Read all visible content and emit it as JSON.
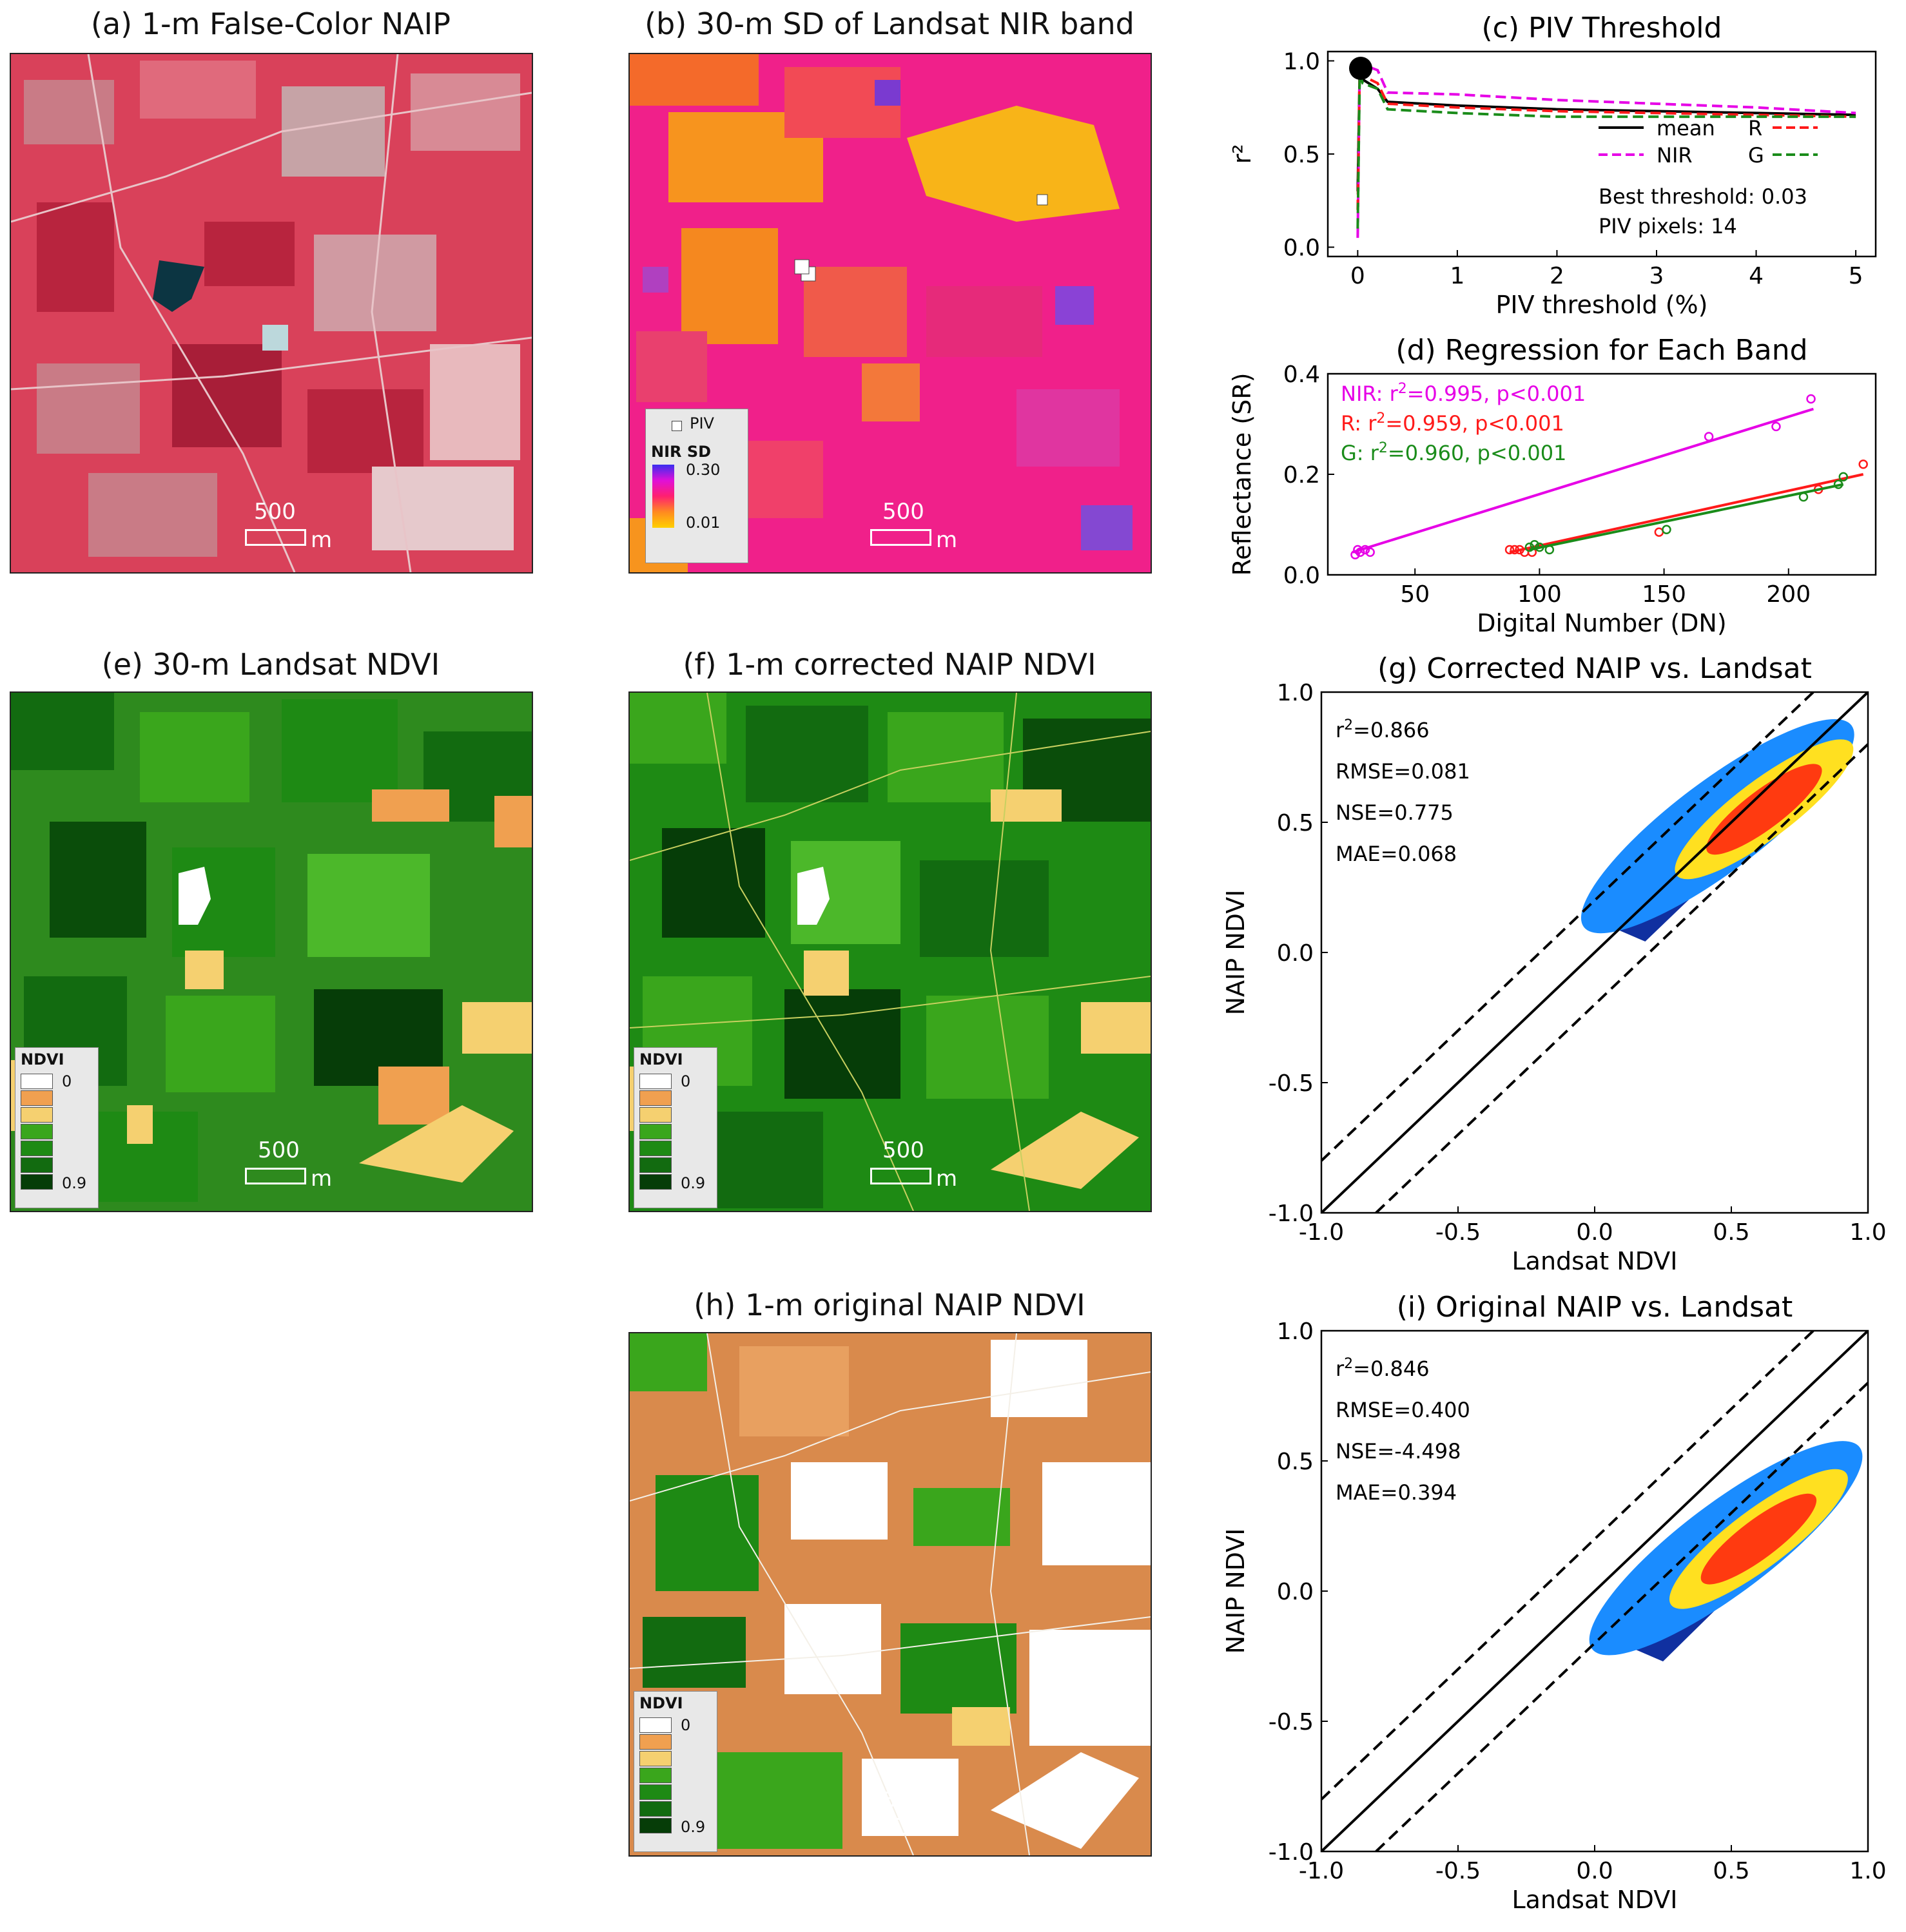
{
  "panels": {
    "a": {
      "title": "(a) 1-m False-Color NAIP",
      "scale_value": "500",
      "scale_unit": "m"
    },
    "b": {
      "title": "(b) 30-m SD of Landsat NIR band",
      "scale_value": "500",
      "scale_unit": "m",
      "legend": {
        "piv_label": "PIV",
        "title": "NIR SD",
        "max": "0.30",
        "min": "0.01"
      }
    },
    "e": {
      "title": "(e) 30-m Landsat NDVI",
      "scale_value": "500",
      "scale_unit": "m"
    },
    "f": {
      "title": "(f) 1-m corrected NAIP NDVI",
      "scale_value": "500",
      "scale_unit": "m"
    },
    "h": {
      "title": "(h) 1-m original NAIP NDVI",
      "scale_value": "500",
      "scale_unit": "m"
    }
  },
  "ndvi_legend": {
    "title": "NDVI",
    "min": "0",
    "max": "0.9",
    "colors": [
      "#ffffff",
      "#f0a050",
      "#f5d070",
      "#3aa61c",
      "#1e8a14",
      "#126b10",
      "#063d08"
    ]
  },
  "colors": {
    "naip_base": "#d9415a",
    "sd_base": "#f0208a",
    "ndvi_base": "#2e8a1e",
    "orig_base": "#d98a4c",
    "mean": "#000000",
    "nir": "#e600e6",
    "r": "#ff1a1a",
    "g": "#1a8c1a"
  },
  "chart_data": [
    {
      "id": "c",
      "type": "line",
      "title": "(c) PIV Threshold",
      "xlabel": "PIV threshold (%)",
      "ylabel": "r²",
      "xlim": [
        -0.3,
        5.2
      ],
      "ylim": [
        -0.05,
        1.05
      ],
      "xticks": [
        0,
        1,
        2,
        3,
        4,
        5
      ],
      "xtick_labels": [
        "0",
        "1",
        "2",
        "3",
        "4",
        "5"
      ],
      "yticks": [
        0,
        0.5,
        1
      ],
      "ytick_labels": [
        "0.0",
        "0.5",
        "1.0"
      ],
      "series": [
        {
          "name": "mean",
          "style": "solid",
          "x": [
            0,
            0.02,
            0.03,
            0.05,
            0.2,
            0.3,
            1,
            2,
            3,
            4,
            5
          ],
          "y": [
            0.3,
            0.95,
            0.96,
            0.9,
            0.85,
            0.78,
            0.76,
            0.74,
            0.73,
            0.72,
            0.71
          ]
        },
        {
          "name": "NIR",
          "style": "dashed",
          "x": [
            0,
            0.02,
            0.05,
            0.2,
            0.3,
            1,
            2,
            3,
            4,
            5
          ],
          "y": [
            0.05,
            0.98,
            0.98,
            0.95,
            0.83,
            0.82,
            0.79,
            0.77,
            0.75,
            0.72
          ]
        },
        {
          "name": "R",
          "style": "dashed",
          "x": [
            0,
            0.02,
            0.05,
            0.2,
            0.3,
            1,
            2,
            3,
            4,
            5
          ],
          "y": [
            0.2,
            0.95,
            0.92,
            0.88,
            0.77,
            0.75,
            0.73,
            0.72,
            0.71,
            0.7
          ]
        },
        {
          "name": "G",
          "style": "dashed",
          "x": [
            0,
            0.02,
            0.05,
            0.2,
            0.3,
            1,
            2,
            3,
            4,
            5
          ],
          "y": [
            0.1,
            0.93,
            0.88,
            0.85,
            0.74,
            0.72,
            0.7,
            0.7,
            0.7,
            0.7
          ]
        }
      ],
      "best_point": {
        "x": 0.03,
        "y": 0.96
      },
      "annotations": [
        "Best threshold: 0.03",
        "PIV pixels: 14"
      ],
      "legend": [
        "mean",
        "R",
        "NIR",
        "G"
      ]
    },
    {
      "id": "d",
      "type": "scatter",
      "title": "(d) Regression for Each Band",
      "xlabel": "Digital Number (DN)",
      "ylabel": "Reflectance (SR)",
      "xlim": [
        15,
        235
      ],
      "ylim": [
        0,
        0.4
      ],
      "xticks": [
        50,
        100,
        150,
        200
      ],
      "xtick_labels": [
        "50",
        "100",
        "150",
        "200"
      ],
      "yticks": [
        0,
        0.2,
        0.4
      ],
      "ytick_labels": [
        "0.0",
        "0.2",
        "0.4"
      ],
      "series": [
        {
          "name": "NIR",
          "points": [
            [
              26,
              0.04
            ],
            [
              27,
              0.05
            ],
            [
              28,
              0.045
            ],
            [
              30,
              0.05
            ],
            [
              32,
              0.045
            ],
            [
              168,
              0.275
            ],
            [
              195,
              0.295
            ],
            [
              209,
              0.35
            ]
          ],
          "fit": [
            [
              25,
              0.045
            ],
            [
              210,
              0.33
            ]
          ],
          "label_prefix": "NIR: r",
          "label_suffix": "=0.995, p<0.001"
        },
        {
          "name": "R",
          "points": [
            [
              88,
              0.05
            ],
            [
              90,
              0.05
            ],
            [
              92,
              0.05
            ],
            [
              94,
              0.045
            ],
            [
              97,
              0.045
            ],
            [
              148,
              0.085
            ],
            [
              212,
              0.17
            ],
            [
              230,
              0.22
            ]
          ],
          "fit": [
            [
              88,
              0.045
            ],
            [
              230,
              0.2
            ]
          ],
          "label_prefix": "R: r",
          "label_suffix": "=0.959, p<0.001"
        },
        {
          "name": "G",
          "points": [
            [
              96,
              0.055
            ],
            [
              98,
              0.06
            ],
            [
              100,
              0.055
            ],
            [
              104,
              0.05
            ],
            [
              151,
              0.09
            ],
            [
              206,
              0.155
            ],
            [
              220,
              0.18
            ],
            [
              222,
              0.195
            ]
          ],
          "fit": [
            [
              96,
              0.05
            ],
            [
              222,
              0.18
            ]
          ],
          "label_prefix": "G: r",
          "label_suffix": "=0.960, p<0.001"
        }
      ]
    },
    {
      "id": "g",
      "type": "scatter",
      "title": "(g) Corrected NAIP vs. Landsat",
      "xlabel": "Landsat NDVI",
      "ylabel": "NAIP NDVI",
      "xlim": [
        -1,
        1
      ],
      "ylim": [
        -1,
        1
      ],
      "xticks": [
        -1,
        -0.5,
        0,
        0.5,
        1
      ],
      "xtick_labels": [
        "-1.0",
        "-0.5",
        "0.0",
        "0.5",
        "1.0"
      ],
      "yticks": [
        -1,
        -0.5,
        0,
        0.5,
        1
      ],
      "ytick_labels": [
        "-1.0",
        "-0.5",
        "0.0",
        "0.5",
        "1.0"
      ],
      "stats": {
        "r2": "=0.866",
        "rmse": "RMSE=0.081",
        "nse": "NSE=0.775",
        "mae": "MAE=0.068"
      },
      "cloud": {
        "from": [
          0.05,
          0.15
        ],
        "to": [
          0.85,
          0.82
        ],
        "halfwidth": 0.09
      },
      "center": [
        0.62,
        0.55
      ],
      "offset": 0.2
    },
    {
      "id": "i",
      "type": "scatter",
      "title": "(i) Original NAIP vs. Landsat",
      "xlabel": "Landsat NDVI",
      "ylabel": "NAIP NDVI",
      "xlim": [
        -1,
        1
      ],
      "ylim": [
        -1,
        1
      ],
      "xticks": [
        -1,
        -0.5,
        0,
        0.5,
        1
      ],
      "xtick_labels": [
        "-1.0",
        "-0.5",
        "0.0",
        "0.5",
        "1.0"
      ],
      "yticks": [
        -1,
        -0.5,
        0,
        0.5,
        1
      ],
      "ytick_labels": [
        "-1.0",
        "-0.5",
        "0.0",
        "0.5",
        "1.0"
      ],
      "stats": {
        "r2": "=0.846",
        "rmse": "RMSE=0.400",
        "nse": "NSE=-4.498",
        "mae": "MAE=0.394"
      },
      "cloud": {
        "from": [
          0.1,
          -0.15
        ],
        "to": [
          0.86,
          0.48
        ],
        "halfwidth": 0.1
      },
      "center": [
        0.6,
        0.2
      ],
      "offset": 0.2
    }
  ]
}
